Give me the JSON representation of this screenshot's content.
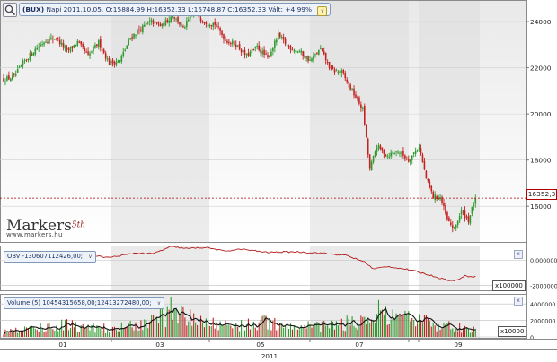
{
  "header": {
    "symbol": "(BUX)",
    "quote": "Napi 2011.10.05. O:15884.99 H:16352.33 L:15748.87 C:16352.33 Vált: +4.99%"
  },
  "watermark": {
    "brand": "Markers",
    "superscript": "5th",
    "url": "www.markers.hu"
  },
  "price_marker": "16352,3",
  "obv": {
    "label": "OBV -130607112426,00;",
    "multiplier": "x100000"
  },
  "volume": {
    "label": "Volume (5) 10454315658,00;12413272480,00;",
    "multiplier": "x10000"
  },
  "colors": {
    "up": "#2f9a2f",
    "down": "#c42121",
    "obv_line": "#b31b1b",
    "vol_ma": "#111111",
    "band": "#dcdcdc",
    "price_line": "#b00000"
  },
  "chart_data": [
    {
      "type": "candlestick",
      "title": "BUX daily",
      "y_ticks": [
        16000,
        18000,
        20000,
        22000,
        24000
      ],
      "ylim": [
        14650,
        24700
      ],
      "x_tick_labels": [
        "01",
        "03",
        "05",
        "07",
        "09"
      ],
      "x_year_label": "2011",
      "last_close": 16352.33,
      "close_path": [
        [
          0,
          21500
        ],
        [
          6,
          21600
        ],
        [
          12,
          22300
        ],
        [
          18,
          22800
        ],
        [
          24,
          23200
        ],
        [
          30,
          23300
        ],
        [
          36,
          22700
        ],
        [
          42,
          23100
        ],
        [
          48,
          22500
        ],
        [
          54,
          23100
        ],
        [
          60,
          22200
        ],
        [
          66,
          22300
        ],
        [
          72,
          23300
        ],
        [
          78,
          23700
        ],
        [
          84,
          24000
        ],
        [
          90,
          23800
        ],
        [
          96,
          24300
        ],
        [
          102,
          23700
        ],
        [
          108,
          24400
        ],
        [
          114,
          24000
        ],
        [
          120,
          23900
        ],
        [
          126,
          23200
        ],
        [
          132,
          23000
        ],
        [
          138,
          22500
        ],
        [
          144,
          22900
        ],
        [
          150,
          22400
        ],
        [
          156,
          23400
        ],
        [
          162,
          22900
        ],
        [
          168,
          22700
        ],
        [
          174,
          22300
        ],
        [
          180,
          22800
        ],
        [
          186,
          21900
        ],
        [
          192,
          21800
        ],
        [
          198,
          21000
        ],
        [
          204,
          20200
        ],
        [
          208,
          17600
        ],
        [
          212,
          18600
        ],
        [
          218,
          18200
        ],
        [
          224,
          18400
        ],
        [
          230,
          18000
        ],
        [
          236,
          18600
        ],
        [
          240,
          17200
        ],
        [
          244,
          16400
        ],
        [
          248,
          16400
        ],
        [
          252,
          15400
        ],
        [
          256,
          15000
        ],
        [
          260,
          15800
        ],
        [
          264,
          15400
        ],
        [
          268,
          16350
        ]
      ]
    },
    {
      "type": "line",
      "title": "OBV",
      "y_ticks": [
        0,
        -2000000
      ],
      "tick_labels": [
        "0,000000",
        "-2000000"
      ],
      "ylim": [
        -2300000,
        1000000
      ],
      "close_path": [
        [
          0,
          450000
        ],
        [
          15,
          550000
        ],
        [
          30,
          300000
        ],
        [
          45,
          400000
        ],
        [
          60,
          200000
        ],
        [
          75,
          550000
        ],
        [
          85,
          500000
        ],
        [
          95,
          1050000
        ],
        [
          105,
          900000
        ],
        [
          115,
          1000000
        ],
        [
          125,
          700000
        ],
        [
          135,
          850000
        ],
        [
          150,
          600000
        ],
        [
          165,
          650000
        ],
        [
          180,
          550000
        ],
        [
          195,
          350000
        ],
        [
          205,
          -150000
        ],
        [
          210,
          -700000
        ],
        [
          218,
          -500000
        ],
        [
          230,
          -750000
        ],
        [
          240,
          -1100000
        ],
        [
          250,
          -1500000
        ],
        [
          256,
          -1650000
        ],
        [
          262,
          -1250000
        ],
        [
          268,
          -1300000
        ]
      ]
    },
    {
      "type": "bar",
      "title": "Volume",
      "y_ticks": [
        0,
        2000000,
        4000000
      ],
      "tick_labels": [
        "0",
        "2000000",
        "4000000"
      ],
      "ylim": [
        0,
        5000000
      ],
      "envelope": [
        [
          0,
          700000
        ],
        [
          20,
          1400000
        ],
        [
          40,
          1800000
        ],
        [
          60,
          1200000
        ],
        [
          80,
          1700000
        ],
        [
          95,
          3800000
        ],
        [
          110,
          2200000
        ],
        [
          130,
          1700000
        ],
        [
          150,
          2100000
        ],
        [
          170,
          1600000
        ],
        [
          190,
          1800000
        ],
        [
          205,
          2400000
        ],
        [
          212,
          3600000
        ],
        [
          220,
          2600000
        ],
        [
          235,
          2400000
        ],
        [
          250,
          1700000
        ],
        [
          260,
          1300000
        ],
        [
          268,
          1000000
        ]
      ]
    }
  ]
}
